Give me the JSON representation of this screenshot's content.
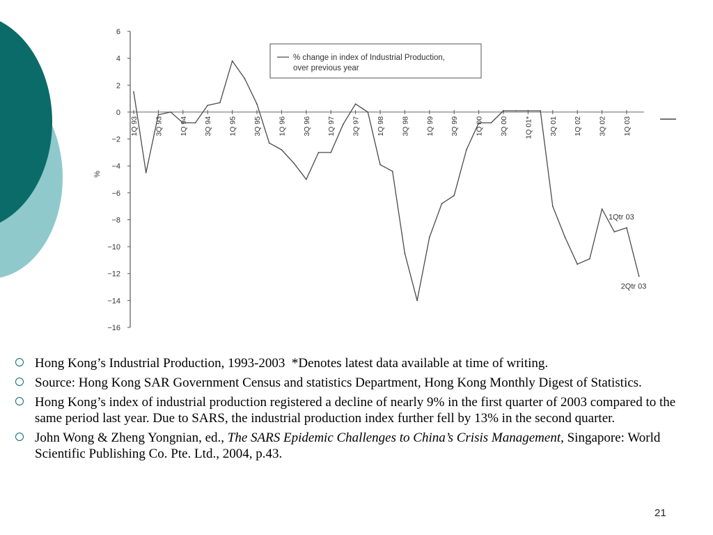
{
  "slide": {
    "page_number": "21",
    "bullets": [
      {
        "text": "Hong Kong’s Industrial Production, 1993-2003",
        "note": "*Denotes latest data available at time of writing."
      },
      {
        "text": "Source: Hong Kong SAR Government Census and statistics Department, Hong Kong Monthly Digest of Statistics."
      },
      {
        "text": "Hong Kong’s index of industrial production registered a decline of nearly 9% in the first quarter of 2003 compared to the same period last year. Due to SARS, the industrial production index further fell by 13% in the second quarter."
      },
      {
        "author": "John Wong & Zheng Yongnian, ed., ",
        "title": "The SARS Epidemic Challenges to China’s Crisis Management",
        "rest": ", Singapore: World Scientific Publishing Co. Pte. Ltd., 2004, p.43."
      }
    ]
  },
  "chart_data": {
    "type": "line",
    "title": "",
    "xlabel": "",
    "ylabel": "%",
    "ylim": [
      -16,
      6
    ],
    "yticks": [
      6,
      4,
      2,
      0,
      -2,
      -4,
      -6,
      -8,
      -10,
      -12,
      -14,
      -16
    ],
    "legend": {
      "position": "top-center",
      "lines": [
        "% change in index of Industrial Production,",
        "over previous year"
      ]
    },
    "x_index_range": [
      0,
      41
    ],
    "categories": [
      "1Q 93",
      "3Q 93",
      "1Q 94",
      "3Q 94",
      "1Q 95",
      "3Q 95",
      "1Q 96",
      "3Q 96",
      "1Q 97",
      "3Q 97",
      "1Q 98",
      "3Q 98",
      "1Q 99",
      "3Q 99",
      "1Q 00",
      "3Q 00",
      "1Q 01*",
      "3Q 01",
      "1Q 02",
      "3Q 02",
      "1Q 03"
    ],
    "category_positions": [
      0,
      2,
      4,
      6,
      8,
      10,
      12,
      14,
      16,
      18,
      20,
      22,
      24,
      26,
      28,
      30,
      32,
      34,
      36,
      38,
      40
    ],
    "series": [
      {
        "name": "% change in index of Industrial Production, over previous year",
        "x": [
          0,
          1,
          2,
          3,
          4,
          5,
          6,
          7,
          8,
          9,
          10,
          11,
          12,
          13,
          14,
          15,
          16,
          17,
          18,
          19,
          20,
          21,
          22,
          23,
          24,
          25,
          26,
          27,
          28,
          29,
          30,
          31,
          32,
          33,
          34,
          35,
          36,
          37,
          38,
          39,
          40,
          41
        ],
        "values": [
          1.5,
          -4.5,
          -0.2,
          0.0,
          -0.8,
          -0.8,
          0.5,
          0.7,
          3.8,
          2.5,
          0.6,
          -2.3,
          -2.8,
          -3.8,
          -5.0,
          -3.0,
          -3.0,
          -0.9,
          0.6,
          0.0,
          -3.9,
          -4.4,
          -10.5,
          -14.0,
          -9.3,
          -6.8,
          -6.2,
          -2.8,
          -0.8,
          -0.8,
          0.1,
          0.1,
          0.1,
          0.1,
          -7.0,
          -9.3,
          -11.3,
          -10.9,
          -7.2,
          -8.9,
          -8.6,
          -12.2
        ]
      }
    ],
    "reference_line": {
      "y": 0
    },
    "annotations": [
      {
        "text": "1Qtr 03",
        "x": 40,
        "y": -8.6
      },
      {
        "text": "2Qtr 03",
        "x": 41,
        "y": -12.2
      }
    ]
  }
}
